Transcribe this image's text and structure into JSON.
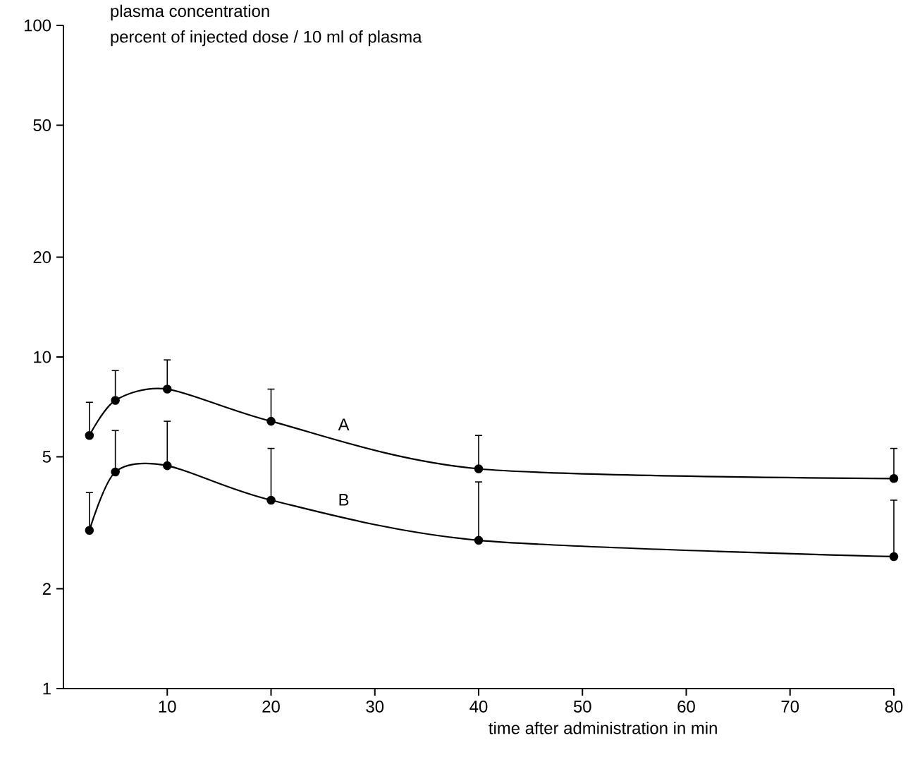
{
  "chart_data": {
    "type": "line",
    "ylabel": "plasma concentration",
    "xlabel": "time after administration in min",
    "annotations": [
      "percent of injected dose / 10 ml of plasma"
    ],
    "x": [
      2.5,
      5,
      10,
      20,
      40,
      80
    ],
    "series": [
      {
        "name": "A",
        "color": "#000000",
        "values": [
          5.8,
          7.4,
          8.0,
          6.4,
          4.6,
          4.3
        ],
        "errors": [
          [
            5.8,
            7.3
          ],
          [
            7.4,
            9.1
          ],
          [
            8.0,
            9.8
          ],
          [
            6.4,
            8.0
          ],
          [
            4.6,
            5.8
          ],
          [
            4.3,
            5.3
          ]
        ]
      },
      {
        "name": "B",
        "color": "#000000",
        "values": [
          3.0,
          4.5,
          4.7,
          3.7,
          2.8,
          2.5
        ],
        "errors": [
          [
            3.0,
            3.9
          ],
          [
            4.5,
            6.0
          ],
          [
            4.7,
            6.4
          ],
          [
            3.7,
            5.3
          ],
          [
            2.8,
            4.2
          ],
          [
            2.5,
            3.7
          ]
        ]
      }
    ],
    "xlim": [
      0,
      80
    ],
    "xticks": [
      10,
      20,
      30,
      40,
      50,
      60,
      70,
      80
    ],
    "ylim": [
      1,
      100
    ],
    "yticks": [
      1,
      2,
      5,
      10,
      20,
      50,
      100
    ],
    "log": "y",
    "marker": "circle",
    "line_style": "solid"
  }
}
